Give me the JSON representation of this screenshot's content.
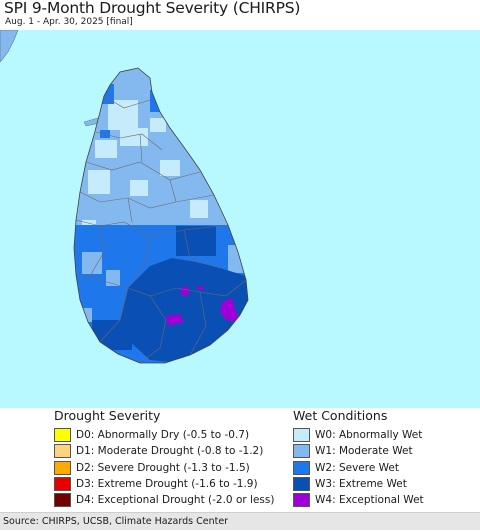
{
  "header": {
    "title": "SPI 9-Month Drought Severity (CHIRPS)",
    "subtitle": "Aug. 1 - Apr. 30, 2025 [final]"
  },
  "map": {
    "sea_color": "#b8f9ff",
    "land_colors": {
      "W0": "#c6ecfb",
      "W1": "#84b9f0",
      "W2": "#1f77ec",
      "W3": "#0a4fb4",
      "W4": "#a000d8"
    }
  },
  "legend": {
    "drought": {
      "title": "Drought Severity",
      "items": [
        {
          "label": "D0: Abnormally Dry (-0.5 to -0.7)",
          "color": "#ffff00"
        },
        {
          "label": "D1: Moderate Drought (-0.8 to -1.2)",
          "color": "#fcd37f"
        },
        {
          "label": "D2: Severe Drought (-1.3 to -1.5)",
          "color": "#ffaa00"
        },
        {
          "label": "D3: Extreme Drought (-1.6 to -1.9)",
          "color": "#e60000"
        },
        {
          "label": "D4: Exceptional Drought (-2.0 or less)",
          "color": "#730000"
        }
      ]
    },
    "wet": {
      "title": "Wet Conditions",
      "items": [
        {
          "label": "W0: Abnormally Wet",
          "color": "#c6ecfb"
        },
        {
          "label": "W1: Moderate Wet",
          "color": "#84b9f0"
        },
        {
          "label": "W2: Severe Wet",
          "color": "#1f77ec"
        },
        {
          "label": "W3: Extreme Wet",
          "color": "#0a4fb4"
        },
        {
          "label": "W4: Exceptional Wet",
          "color": "#a000d8"
        }
      ]
    }
  },
  "footer": {
    "source": "Source: CHIRPS, UCSB, Climate Hazards Center"
  }
}
